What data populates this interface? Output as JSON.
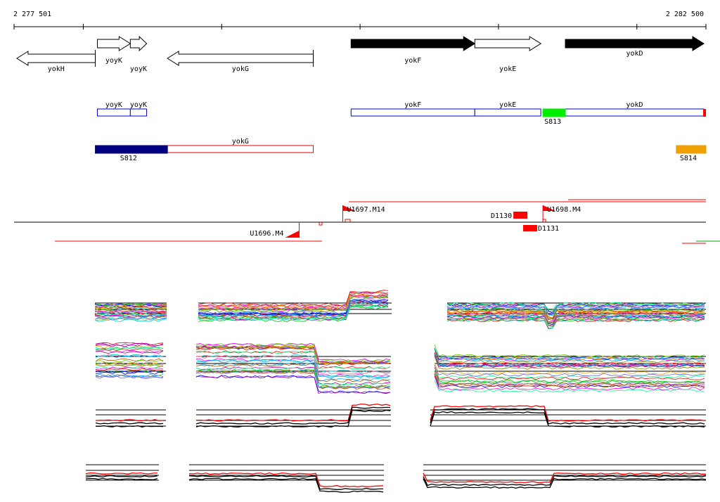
{
  "axis": {
    "start_label": "2 277 501",
    "end_label": "2 282 500",
    "start": 2277501,
    "end": 2282500
  },
  "genes": [
    {
      "name": "yokH",
      "start": 2277521,
      "end": 2278088,
      "strand": "-",
      "fill": "open"
    },
    {
      "name": "yoyK",
      "start": 2278103,
      "end": 2278341,
      "strand": "+",
      "fill": "open"
    },
    {
      "name": "yoyK",
      "start": 2278341,
      "end": 2278459,
      "strand": "+",
      "fill": "open"
    },
    {
      "name": "yokG",
      "start": 2278609,
      "end": 2279663,
      "strand": "-",
      "fill": "open"
    },
    {
      "name": "yokF",
      "start": 2279936,
      "end": 2280830,
      "strand": "+",
      "fill": "solid"
    },
    {
      "name": "yokE",
      "start": 2280830,
      "end": 2281307,
      "strand": "+",
      "fill": "open"
    },
    {
      "name": "yokD",
      "start": 2281484,
      "end": 2282485,
      "strand": "+",
      "fill": "solid"
    }
  ],
  "annotated_features": [
    {
      "name": "yoyK",
      "start": 2278103,
      "end": 2278341,
      "row": "plus"
    },
    {
      "name": "yoyK",
      "start": 2278341,
      "end": 2278459,
      "row": "plus"
    },
    {
      "name": "yokF",
      "start": 2279936,
      "end": 2280830,
      "row": "plus"
    },
    {
      "name": "yokE",
      "start": 2280830,
      "end": 2281307,
      "row": "plus"
    },
    {
      "name": "yokD",
      "start": 2281484,
      "end": 2282485,
      "row": "plus"
    },
    {
      "name": "yokG",
      "start": 2278609,
      "end": 2279663,
      "row": "minus"
    }
  ],
  "segments": [
    {
      "name": "S813",
      "start": 2281322,
      "end": 2281484,
      "color": "#00ee00",
      "row": "plus"
    },
    {
      "name": "S812",
      "start": 2278088,
      "end": 2278609,
      "color": "#000080",
      "row": "minus"
    },
    {
      "name": "S814",
      "start": 2282286,
      "end": 2282500,
      "color": "#f0a000",
      "row": "minus"
    }
  ],
  "transcription_signals": [
    {
      "name": "U1697.M14",
      "position": 2279876,
      "strand": "+"
    },
    {
      "name": "U1698.M4",
      "position": 2281322,
      "strand": "+"
    },
    {
      "name": "U1696.M4",
      "position": 2279561,
      "strand": "-"
    },
    {
      "name": "D1130",
      "position": 2281195,
      "strand": "+"
    },
    {
      "name": "D1131",
      "position": 2281220,
      "strand": "-"
    }
  ],
  "colors": {
    "annotation_outline": "#0000c0",
    "minus_outline": "#e00000",
    "signal": "#ff0000",
    "profile_line": "#000000",
    "profile_mean": "#ff0000"
  }
}
